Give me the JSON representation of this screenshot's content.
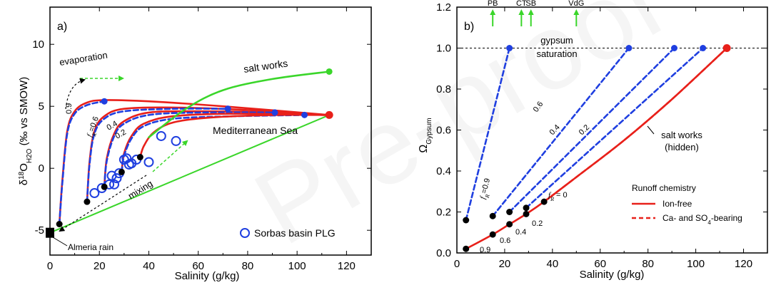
{
  "watermark": "Pre-proof",
  "chart_data": [
    {
      "type": "line",
      "panel_label": "a)",
      "xlabel": "Salinity (g/kg)",
      "ylabel_main": "δ",
      "ylabel_sup": "18",
      "ylabel_mid": "O",
      "ylabel_sub": "H2O",
      "ylabel_units": " (‰ vs SMOW)",
      "xlim": [
        0,
        130
      ],
      "ylim": [
        -7,
        13
      ],
      "xticks": [
        0,
        20,
        40,
        60,
        80,
        100,
        120
      ],
      "yticks": [
        -5,
        0,
        5,
        10
      ],
      "ytick_labels": [
        "-5",
        "0",
        "5",
        "10"
      ],
      "colors": {
        "red": "#e8201a",
        "blue": "#1f3fe0",
        "green": "#3ad62a",
        "black": "#000000"
      },
      "annotations": {
        "evaporation": "evaporation",
        "mixing": "mixing",
        "salt_works": "salt works",
        "mediterranean": "Mediterranean Sea",
        "almeria": "Almeria rain",
        "f_label": "f",
        "f_sub": "R",
        "f_eq": "=0.6",
        "v09": "0.9",
        "v04": "0.4",
        "v02": "0.2"
      },
      "legend": "Sorbas basin PLG",
      "series": [
        {
          "role": "mix",
          "color": "green",
          "x": [
            0,
            113
          ],
          "y": [
            -5.2,
            4.3
          ]
        },
        {
          "role": "evap",
          "color": "red",
          "x": [
            3.8,
            5,
            7,
            10,
            15,
            22,
            40,
            70,
            113
          ],
          "y": [
            -4.5,
            -1,
            3,
            4.6,
            5.3,
            5.5,
            5.4,
            5.0,
            4.3
          ]
        },
        {
          "role": "evap",
          "color": "blue",
          "x": [
            3.8,
            5,
            7,
            10,
            15,
            22
          ],
          "y": [
            -4.5,
            -1.2,
            2.8,
            4.4,
            5.1,
            5.4
          ]
        },
        {
          "role": "evap",
          "color": "red",
          "x": [
            15,
            16,
            18,
            22,
            30,
            50,
            80,
            113
          ],
          "y": [
            -2.7,
            0.5,
            3.0,
            4.2,
            4.8,
            4.9,
            4.7,
            4.3
          ]
        },
        {
          "role": "evap",
          "color": "blue",
          "x": [
            15,
            16,
            18,
            22,
            30,
            50,
            72
          ],
          "y": [
            -2.7,
            0.3,
            2.8,
            4.0,
            4.6,
            4.8,
            4.8
          ]
        },
        {
          "role": "evap",
          "color": "red",
          "x": [
            22,
            23,
            26,
            30,
            40,
            60,
            90,
            113
          ],
          "y": [
            -1.5,
            0.8,
            2.8,
            3.8,
            4.5,
            4.6,
            4.5,
            4.3
          ]
        },
        {
          "role": "evap",
          "color": "blue",
          "x": [
            22,
            23,
            26,
            30,
            40,
            60,
            91
          ],
          "y": [
            -1.5,
            0.6,
            2.6,
            3.6,
            4.3,
            4.5,
            4.5
          ]
        },
        {
          "role": "evap",
          "color": "red",
          "x": [
            29,
            30,
            33,
            38,
            50,
            75,
            113
          ],
          "y": [
            -0.3,
            1.2,
            2.6,
            3.6,
            4.2,
            4.4,
            4.3
          ]
        },
        {
          "role": "evap",
          "color": "blue",
          "x": [
            29,
            30,
            33,
            38,
            50,
            75,
            103
          ],
          "y": [
            -0.3,
            1.0,
            2.4,
            3.4,
            4.0,
            4.2,
            4.3
          ]
        },
        {
          "role": "evap",
          "color": "red",
          "x": [
            36.5,
            38,
            42,
            50,
            65,
            90,
            113
          ],
          "y": [
            0.9,
            1.8,
            2.9,
            3.7,
            4.1,
            4.3,
            4.3
          ]
        },
        {
          "role": "saltworks",
          "color": "green",
          "x": [
            40,
            55,
            70,
            90,
            113
          ],
          "y": [
            2.5,
            4.8,
            6.3,
            7.2,
            7.8
          ]
        }
      ],
      "points_black": {
        "x": [
          3.8,
          15,
          22,
          29,
          36.5,
          0
        ],
        "y": [
          -4.5,
          -2.7,
          -1.5,
          -0.3,
          0.9,
          -5.2
        ]
      },
      "points_blue": {
        "x": [
          22,
          72,
          91,
          103
        ],
        "y": [
          5.4,
          4.8,
          4.5,
          4.3
        ]
      },
      "points_green": {
        "x": [
          113
        ],
        "y": [
          7.8
        ]
      },
      "points_red": {
        "x": [
          113
        ],
        "y": [
          4.3
        ]
      },
      "plg": {
        "x": [
          18,
          21,
          24,
          26,
          25,
          33,
          30,
          32,
          35,
          40,
          45,
          51,
          28,
          27,
          31
        ],
        "y": [
          -2.0,
          -1.6,
          -1.3,
          -1.3,
          -0.6,
          0.4,
          0.7,
          0.3,
          0.7,
          0.5,
          2.6,
          2.2,
          -0.4,
          -0.8,
          0.8
        ]
      }
    },
    {
      "type": "line",
      "panel_label": "b)",
      "xlabel": "Salinity (g/kg)",
      "ylabel_main": "Ω",
      "ylabel_sub": "Gypsum",
      "xlim": [
        0,
        130
      ],
      "ylim": [
        0,
        1.2
      ],
      "xticks": [
        0,
        20,
        40,
        60,
        80,
        100,
        120
      ],
      "yticks": [
        0,
        0.2,
        0.4,
        0.6,
        0.8,
        1.0,
        1.2
      ],
      "ytick_labels": [
        "0.0",
        "0.2",
        "0.4",
        "0.6",
        "0.8",
        "1.0",
        "1.2"
      ],
      "top_markers": [
        {
          "label": "PB",
          "x": 15
        },
        {
          "label": "CT",
          "x": 27
        },
        {
          "label": "SB",
          "x": 31
        },
        {
          "label": "VdG",
          "x": 50
        }
      ],
      "saturation_label_1": "gypsum",
      "saturation_label_2": "saturation",
      "saturation_y": 1.0,
      "annotations": {
        "salt_works_1": "salt works",
        "salt_works_2": "(hidden)",
        "f_label": "f",
        "f_sub": "R",
        "f_eq": "=0.9",
        "fr0_eq": " = 0",
        "b06": "0.6",
        "b04": "0.4",
        "b02": "0.2",
        "s09": "0.9",
        "s06": "0.6",
        "s04": "0.4",
        "s02": "0.2"
      },
      "legend_title": "Runoff chemistry",
      "legend_entries": [
        {
          "label": "Ion-free",
          "style": "solid",
          "color": "red"
        },
        {
          "label": "Ca- and SO",
          "sub": "4",
          "tail": "-bearing",
          "style": "dashed",
          "color": "red"
        }
      ],
      "series": [
        {
          "role": "ionfree",
          "color": "red",
          "style": "solid",
          "x": [
            3.8,
            15,
            22,
            29,
            36.5,
            50,
            70,
            90,
            113
          ],
          "y": [
            0.02,
            0.09,
            0.14,
            0.19,
            0.25,
            0.37,
            0.55,
            0.75,
            1.0
          ]
        },
        {
          "role": "bearing",
          "color": "red",
          "style": "dashed",
          "x": [
            36.5,
            50,
            70,
            90,
            113
          ],
          "y": [
            0.25,
            0.37,
            0.55,
            0.75,
            1.0
          ]
        },
        {
          "role": "bearing",
          "color": "blue",
          "style": "dashed",
          "x": [
            3.8,
            22
          ],
          "y": [
            0.16,
            1.0
          ]
        },
        {
          "role": "bearing",
          "color": "blue",
          "style": "dashed",
          "x": [
            15,
            72
          ],
          "y": [
            0.18,
            1.0
          ]
        },
        {
          "role": "bearing",
          "color": "blue",
          "style": "dashed",
          "x": [
            22,
            91
          ],
          "y": [
            0.2,
            1.0
          ]
        },
        {
          "role": "bearing",
          "color": "blue",
          "style": "dashed",
          "x": [
            29,
            103
          ],
          "y": [
            0.22,
            1.0
          ]
        }
      ],
      "points_black": {
        "x": [
          3.8,
          15,
          22,
          29,
          36.5,
          3.8,
          15,
          22,
          29
        ],
        "y": [
          0.02,
          0.09,
          0.14,
          0.19,
          0.25,
          0.16,
          0.18,
          0.2,
          0.22
        ]
      },
      "points_blue": {
        "x": [
          22,
          72,
          91,
          103
        ],
        "y": [
          1.0,
          1.0,
          1.0,
          1.0
        ]
      },
      "points_red": {
        "x": [
          113
        ],
        "y": [
          1.0
        ]
      }
    }
  ]
}
